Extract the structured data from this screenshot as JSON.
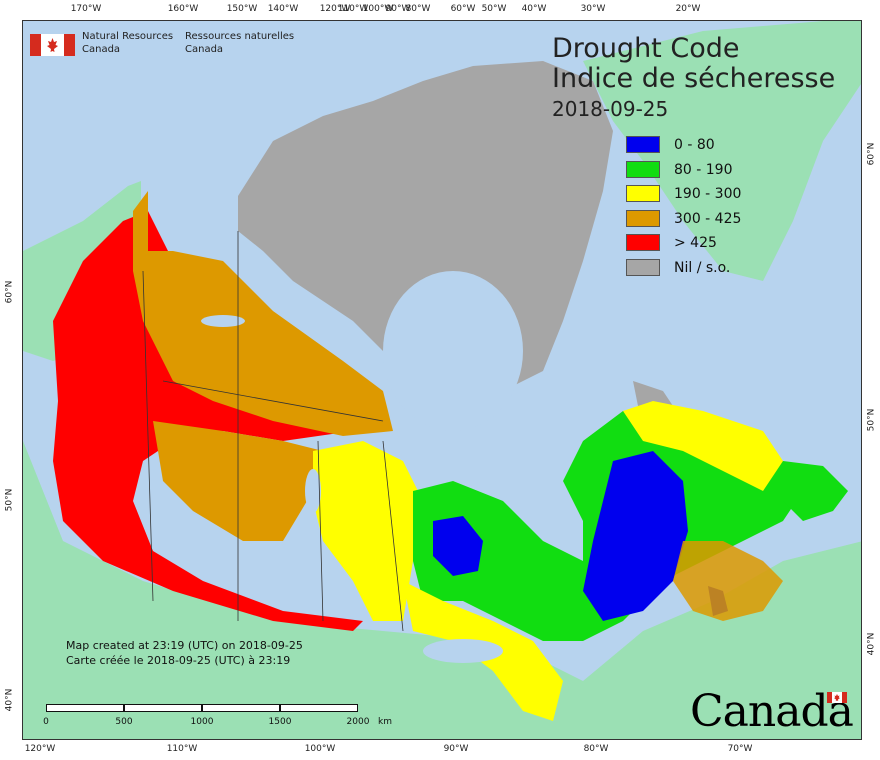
{
  "organization": {
    "name_en_line1": "Natural Resources",
    "name_en_line2": "Canada",
    "name_fr_line1": "Ressources naturelles",
    "name_fr_line2": "Canada"
  },
  "title": {
    "line1": "Drought Code",
    "line2": "Indice de sécheresse",
    "date": "2018-09-25"
  },
  "legend": [
    {
      "label": "0 - 80",
      "color": "#0000ee"
    },
    {
      "label": "80 - 190",
      "color": "#11dd11"
    },
    {
      "label": "190 - 300",
      "color": "#ffff00"
    },
    {
      "label": "300 - 425",
      "color": "#dd9900"
    },
    {
      "label": "> 425",
      "color": "#ff0000"
    },
    {
      "label": "Nil / s.o.",
      "color": "#a6a6a6"
    }
  ],
  "credit": {
    "line1": "Map created at 23:19 (UTC) on 2018-09-25",
    "line2": "Carte créée le 2018-09-25 (UTC) à 23:19"
  },
  "scale": {
    "labels": [
      "0",
      "500",
      "1000",
      "1500",
      "2000"
    ],
    "unit": "km"
  },
  "wordmark": "Canada",
  "graticule": {
    "top": [
      "170°W",
      "160°W",
      "150°W",
      "140°W",
      "120°W",
      "110°W",
      "100°W",
      "90°W",
      "80°W",
      "60°W",
      "50°W",
      "40°W",
      "30°W",
      "20°W"
    ],
    "bottom": [
      "120°W",
      "110°W",
      "100°W",
      "90°W",
      "80°W",
      "70°W"
    ],
    "left": [
      "60°N",
      "50°N",
      "40°N"
    ],
    "right": [
      "60°N",
      "50°N",
      "40°N"
    ]
  }
}
